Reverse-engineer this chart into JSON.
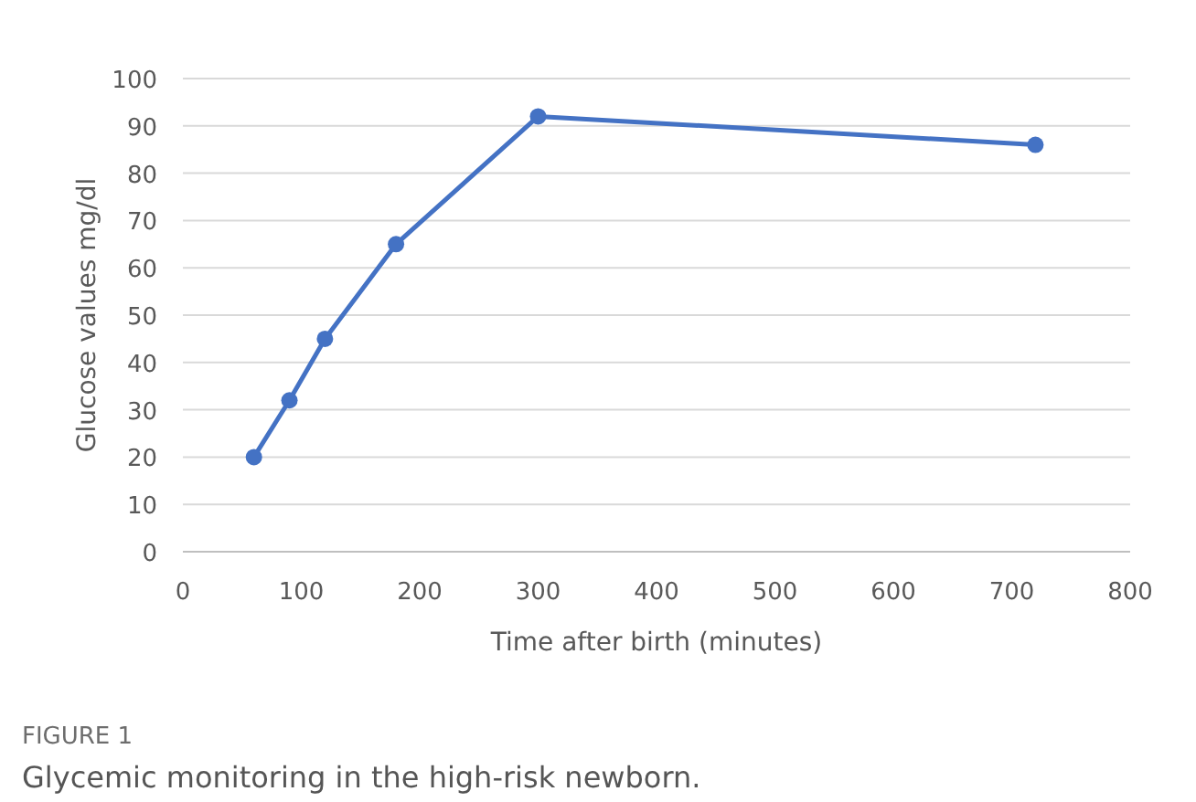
{
  "chart_data": {
    "type": "line",
    "xlabel": "Time after birth (minutes)",
    "ylabel": "Glucose values mg/dl",
    "x": [
      60,
      90,
      120,
      180,
      300,
      720
    ],
    "series": [
      {
        "color": "#4472c4",
        "values": [
          20,
          32,
          45,
          65,
          92,
          86
        ]
      }
    ],
    "xlim": [
      0,
      800
    ],
    "xticks": [
      0,
      100,
      200,
      300,
      400,
      500,
      600,
      700,
      800
    ],
    "ylim": [
      0,
      100
    ],
    "yticks": [
      0,
      10,
      20,
      30,
      40,
      50,
      60,
      70,
      80,
      90,
      100
    ],
    "grid": "y",
    "marker": "circle",
    "line_style": "solid",
    "annotations": [
      "FIGURE 1",
      "Glycemic monitoring in the high-risk newborn."
    ]
  }
}
